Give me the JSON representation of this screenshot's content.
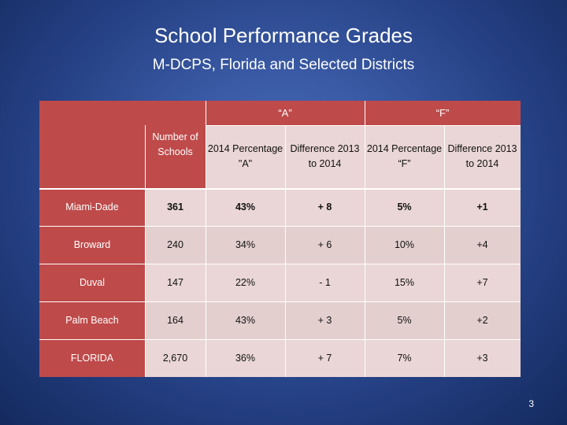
{
  "slide": {
    "title": "School Performance Grades",
    "subtitle": "M-DCPS, Florida and Selected Districts",
    "page_number": "3"
  },
  "table": {
    "group_headers": {
      "a": "“A”",
      "f": "“F”"
    },
    "headers": {
      "num_schools": "Number of Schools",
      "a_pct": "2014 Percentage \"A\"",
      "a_diff": "Difference 2013 to 2014",
      "f_pct": "2014 Percentage “F”",
      "f_diff": "Difference 2013 to 2014"
    },
    "rows": [
      {
        "name": "Miami-Dade",
        "schools": "361",
        "a_pct": "43%",
        "a_diff": "+ 8",
        "f_pct": "5%",
        "f_diff": "+1"
      },
      {
        "name": "Broward",
        "schools": "240",
        "a_pct": "34%",
        "a_diff": "+ 6",
        "f_pct": "10%",
        "f_diff": "+4"
      },
      {
        "name": "Duval",
        "schools": "147",
        "a_pct": "22%",
        "a_diff": "- 1",
        "f_pct": "15%",
        "f_diff": "+7"
      },
      {
        "name": "Palm Beach",
        "schools": "164",
        "a_pct": "43%",
        "a_diff": "+ 3",
        "f_pct": "5%",
        "f_diff": "+2"
      },
      {
        "name": "FLORIDA",
        "schools": "2,670",
        "a_pct": "36%",
        "a_diff": "+ 7",
        "f_pct": "7%",
        "f_diff": "+3"
      }
    ]
  },
  "colors": {
    "header_red": "#bf4a4a",
    "cell_light": "#ead6d6",
    "background": "#3a5aa5"
  }
}
